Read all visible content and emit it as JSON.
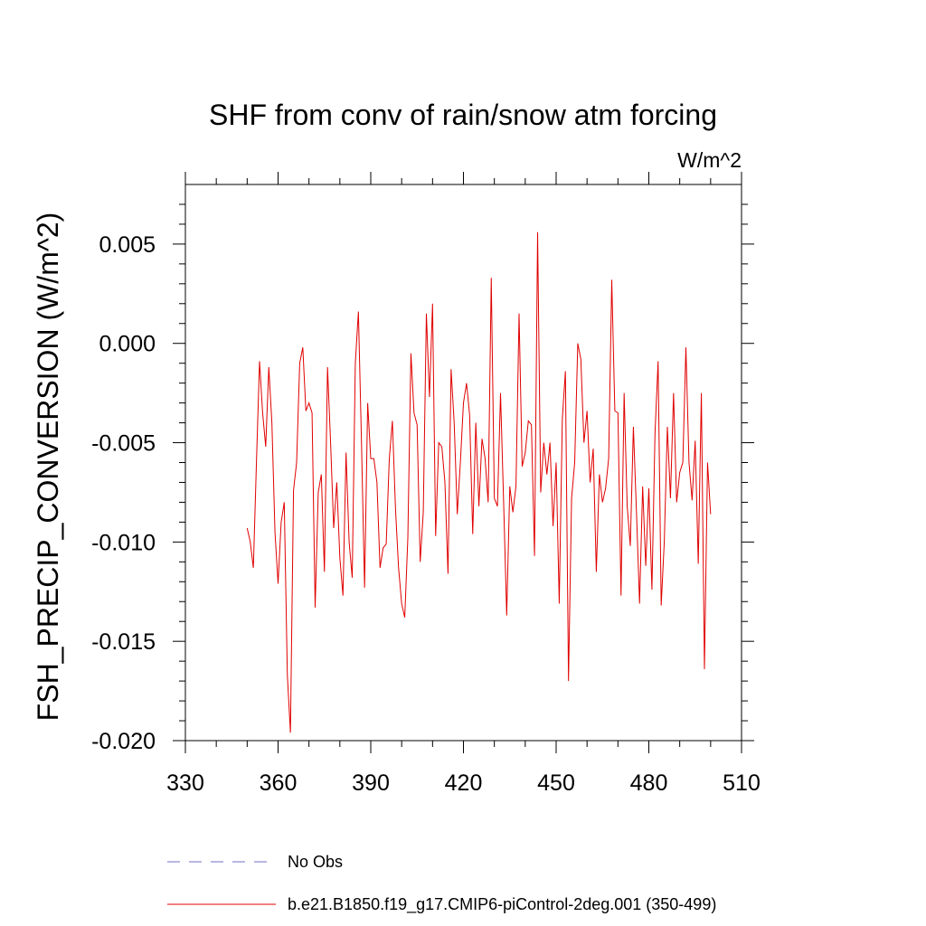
{
  "chart_data": {
    "type": "line",
    "title": "SHF from conv of rain/snow atm forcing",
    "units_label": "W/m^2",
    "xlabel": "",
    "ylabel": "FSH_PRECIP_CONVERSION  (W/m^2)",
    "xlim": [
      330,
      510
    ],
    "ylim": [
      -0.02,
      0.008
    ],
    "x_ticks": [
      330,
      360,
      390,
      420,
      450,
      480,
      510
    ],
    "x_tick_labels": [
      "330",
      "360",
      "390",
      "420",
      "450",
      "480",
      "510"
    ],
    "y_ticks": [
      -0.02,
      -0.015,
      -0.01,
      -0.005,
      0.0,
      0.005
    ],
    "y_tick_labels": [
      "-0.020",
      "-0.015",
      "-0.010",
      "-0.005",
      "0.000",
      "0.005"
    ],
    "grid": false,
    "legend": [
      {
        "label": "No Obs",
        "color": "#6f6fc8",
        "style": "dashed"
      },
      {
        "label": "b.e21.B1850.f19_g17.CMIP6-piControl-2deg.001 (350-499)",
        "color": "#e00000",
        "style": "solid"
      }
    ],
    "series": [
      {
        "name": "b.e21.B1850.f19_g17.CMIP6-piControl-2deg.001 (350-499)",
        "color": "#e00000",
        "x_start": 350,
        "x_step": 1,
        "values": [
          -0.0093,
          -0.01,
          -0.0113,
          -0.006,
          -0.0009,
          -0.0035,
          -0.0052,
          -0.0012,
          -0.004,
          -0.0095,
          -0.0121,
          -0.009,
          -0.008,
          -0.0167,
          -0.0196,
          -0.0074,
          -0.006,
          -0.001,
          -0.0002,
          -0.0034,
          -0.003,
          -0.0035,
          -0.0133,
          -0.0075,
          -0.0066,
          -0.0115,
          -0.0012,
          -0.005,
          -0.0093,
          -0.007,
          -0.0108,
          -0.0127,
          -0.0055,
          -0.01,
          -0.0118,
          -0.001,
          0.0016,
          -0.005,
          -0.0123,
          -0.003,
          -0.0058,
          -0.0058,
          -0.007,
          -0.0113,
          -0.0103,
          -0.0101,
          -0.0058,
          -0.0039,
          -0.0083,
          -0.0113,
          -0.0131,
          -0.0138,
          -0.0098,
          -0.0005,
          -0.0035,
          -0.0041,
          -0.011,
          -0.0085,
          0.0015,
          -0.0027,
          0.002,
          -0.0097,
          -0.005,
          -0.0052,
          -0.007,
          -0.0116,
          -0.0013,
          -0.004,
          -0.0086,
          -0.006,
          -0.003,
          -0.002,
          -0.0036,
          -0.0096,
          -0.004,
          -0.0082,
          -0.0048,
          -0.0058,
          -0.008,
          0.0033,
          -0.0078,
          -0.0082,
          -0.0025,
          -0.008,
          -0.0137,
          -0.0072,
          -0.0085,
          -0.0072,
          0.0015,
          -0.0062,
          -0.0055,
          -0.0039,
          -0.0041,
          -0.0107,
          0.0056,
          -0.0075,
          -0.005,
          -0.0066,
          -0.005,
          -0.0092,
          -0.006,
          -0.0131,
          -0.0038,
          -0.0014,
          -0.017,
          -0.0078,
          -0.006,
          0.0,
          -0.0008,
          -0.005,
          -0.0034,
          -0.007,
          -0.0053,
          -0.0115,
          -0.0066,
          -0.008,
          -0.0073,
          -0.0058,
          0.0032,
          -0.0034,
          -0.0035,
          -0.0127,
          -0.0025,
          -0.0082,
          -0.0102,
          -0.0042,
          -0.0085,
          -0.0131,
          -0.0072,
          -0.0112,
          -0.0073,
          -0.0124,
          -0.0045,
          -0.0009,
          -0.0132,
          -0.01,
          -0.0042,
          -0.0078,
          -0.0025,
          -0.008,
          -0.0065,
          -0.006,
          -0.0002,
          -0.006,
          -0.0079,
          -0.0049,
          -0.0111,
          -0.0025,
          -0.0164,
          -0.006,
          -0.0086
        ]
      }
    ]
  }
}
